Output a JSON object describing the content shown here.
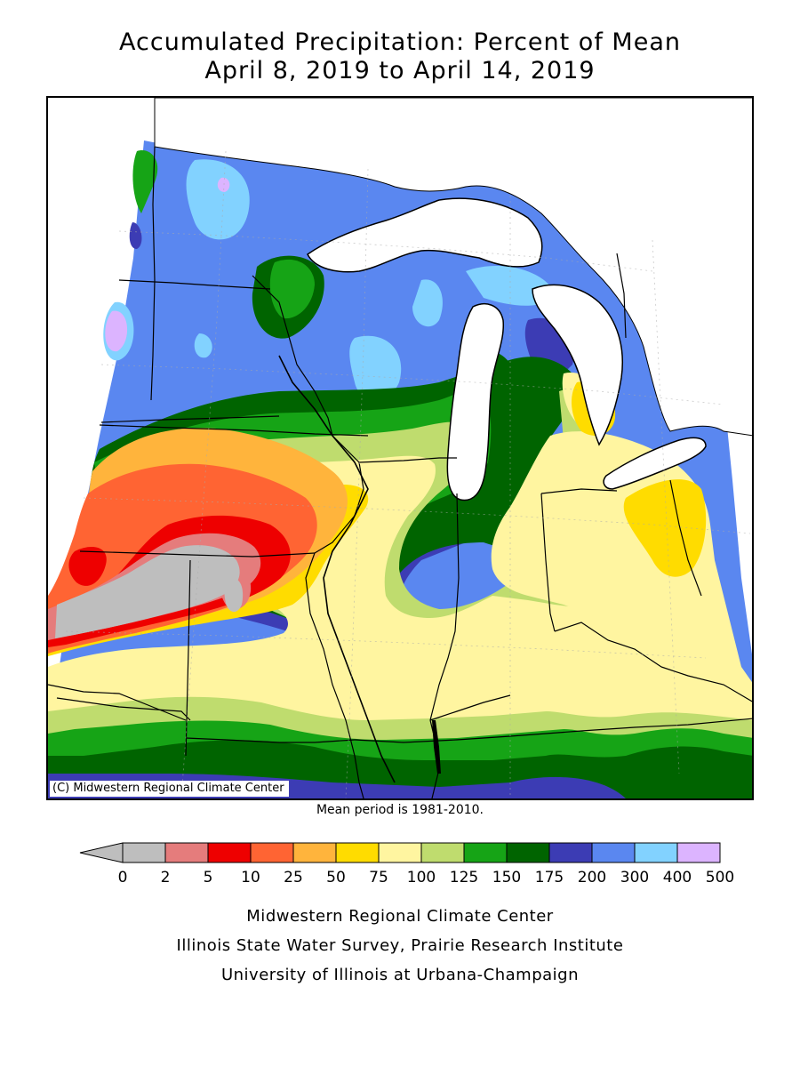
{
  "header": {
    "title_line1": "Accumulated Precipitation: Percent of Mean",
    "title_line2": "April 8, 2019 to April 14, 2019"
  },
  "map": {
    "copyright": "(C) Midwestern Regional Climate Center"
  },
  "notes": {
    "mean_period": "Mean period is 1981-2010."
  },
  "legend": {
    "bins": [
      {
        "label": "0",
        "color": "#bebebe"
      },
      {
        "label": "2",
        "color": "#e57c7c"
      },
      {
        "label": "5",
        "color": "#ee0000"
      },
      {
        "label": "10",
        "color": "#ff6433"
      },
      {
        "label": "25",
        "color": "#ffb43c"
      },
      {
        "label": "50",
        "color": "#ffdc00"
      },
      {
        "label": "75",
        "color": "#fff5a0"
      },
      {
        "label": "100",
        "color": "#bfdc6e"
      },
      {
        "label": "125",
        "color": "#16a416"
      },
      {
        "label": "150",
        "color": "#006400"
      },
      {
        "label": "175",
        "color": "#3c3cb4"
      },
      {
        "label": "200",
        "color": "#5a87f0"
      },
      {
        "label": "300",
        "color": "#82d2ff"
      },
      {
        "label": "400",
        "color": "#dcb4ff"
      }
    ],
    "last_label": "500"
  },
  "footer": {
    "line1": "Midwestern Regional Climate Center",
    "line2": "Illinois State Water Survey, Prairie Research Institute",
    "line3": "University of Illinois at Urbana-Champaign"
  }
}
